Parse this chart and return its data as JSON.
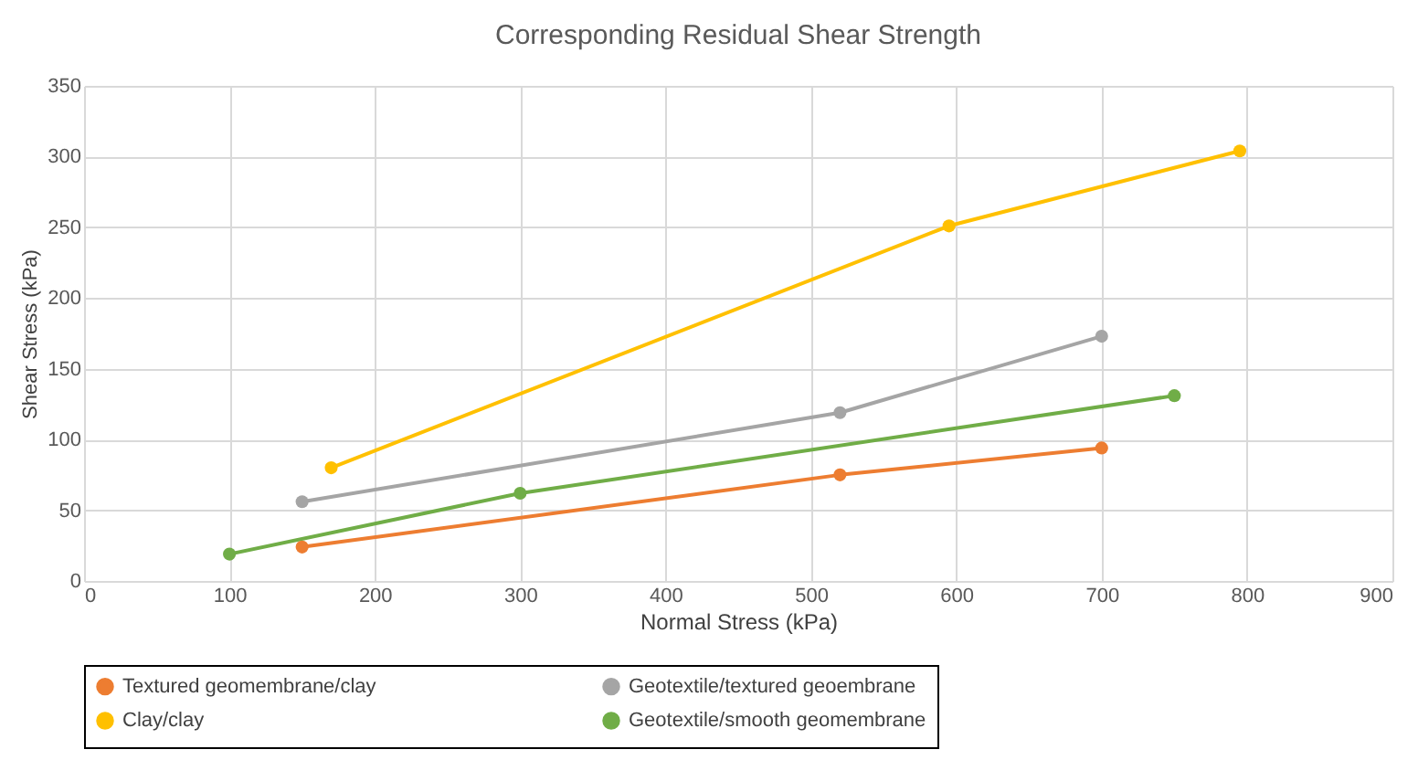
{
  "chart_data": {
    "type": "line",
    "title": "Corresponding Residual Shear Strength",
    "xlabel": "Normal Stress (kPa)",
    "ylabel": "Shear Stress (kPa)",
    "xlim": [
      0,
      900
    ],
    "xticks": [
      0,
      100,
      200,
      300,
      400,
      500,
      600,
      700,
      800,
      900
    ],
    "ylim": [
      0,
      350
    ],
    "yticks": [
      0,
      50,
      100,
      150,
      200,
      250,
      300,
      350
    ],
    "grid": true,
    "legend": "bottom",
    "marker": "circle",
    "line_style": "solid",
    "series": [
      {
        "name": "Textured geomembrane/clay",
        "color": "#ed7d31",
        "x": [
          150,
          520,
          700
        ],
        "values": [
          24,
          75,
          94
        ]
      },
      {
        "name": "Geotextile/textured geoembrane",
        "color": "#a5a5a5",
        "x": [
          150,
          520,
          700
        ],
        "values": [
          56,
          119,
          173
        ]
      },
      {
        "name": "Clay/clay",
        "color": "#ffc000",
        "x": [
          170,
          595,
          795
        ],
        "values": [
          80,
          251,
          304
        ]
      },
      {
        "name": "Geotextile/smooth geomembrane",
        "color": "#70ad47",
        "x": [
          100,
          300,
          750
        ],
        "values": [
          19,
          62,
          131
        ]
      }
    ]
  }
}
